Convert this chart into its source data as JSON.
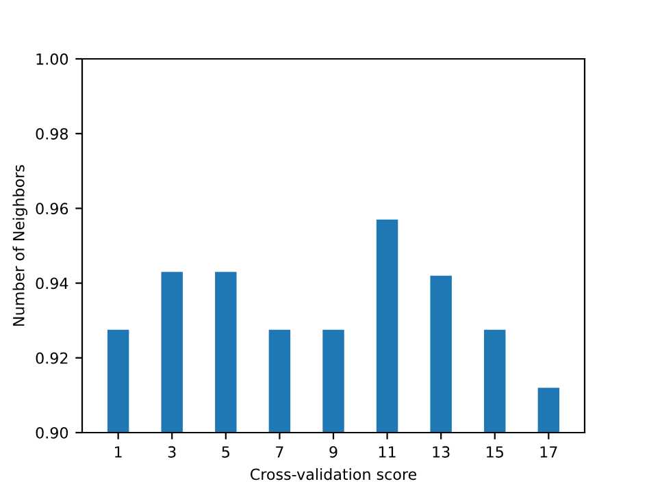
{
  "chart_data": {
    "type": "bar",
    "xlabel": "Cross-validation score",
    "ylabel": "Number of Neighbors",
    "categories": [
      "1",
      "3",
      "5",
      "7",
      "9",
      "11",
      "13",
      "15",
      "17"
    ],
    "values": [
      0.9275,
      0.943,
      0.943,
      0.9275,
      0.9275,
      0.957,
      0.942,
      0.9275,
      0.912
    ],
    "color": "#1f77b4",
    "ylim": [
      0.9,
      1.0
    ],
    "yticks": [
      {
        "value": 0.9,
        "label": "0.90"
      },
      {
        "value": 0.92,
        "label": "0.92"
      },
      {
        "value": 0.94,
        "label": "0.94"
      },
      {
        "value": 0.96,
        "label": "0.96"
      },
      {
        "value": 0.98,
        "label": "0.98"
      },
      {
        "value": 1.0,
        "label": "1.00"
      }
    ],
    "grid": false
  }
}
